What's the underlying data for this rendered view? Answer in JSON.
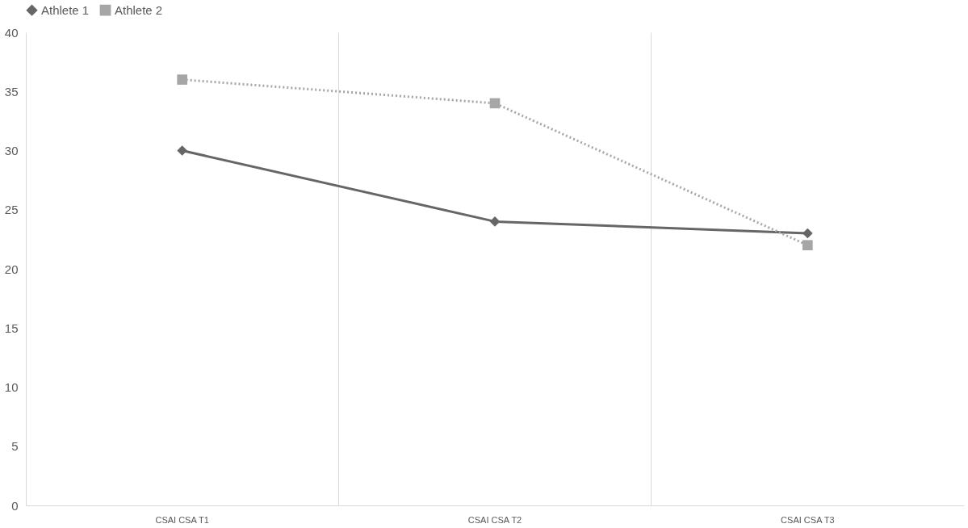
{
  "chart_data": {
    "type": "line",
    "categories": [
      "CSAI CSA T1",
      "CSAI CSA T2",
      "CSAI CSA T3"
    ],
    "series": [
      {
        "name": "Athlete 1",
        "color": "#666666",
        "values": [
          30,
          24,
          23
        ],
        "marker": "diamond",
        "line_style": "solid"
      },
      {
        "name": "Athlete 2",
        "color": "#a6a6a6",
        "values": [
          36,
          34,
          22
        ],
        "marker": "square",
        "line_style": "dotted"
      }
    ],
    "ylim": [
      0,
      40
    ],
    "yticks": [
      0,
      5,
      10,
      15,
      20,
      25,
      30,
      35,
      40
    ],
    "grid": "x",
    "legend": "top"
  }
}
